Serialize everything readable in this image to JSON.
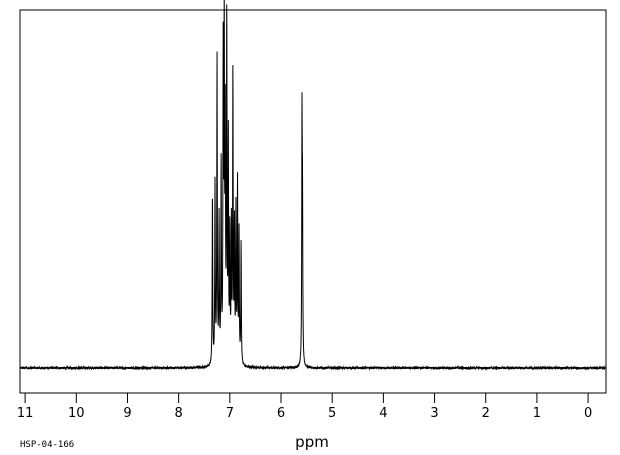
{
  "chart_data": {
    "type": "line",
    "xlabel": "ppm",
    "xlim": [
      11.1,
      -0.35
    ],
    "x_reversed": true,
    "ylim": [
      -0.07,
      1.0
    ],
    "x_ticks": [
      11,
      10,
      9,
      8,
      7,
      6,
      5,
      4,
      3,
      2,
      1,
      0
    ],
    "x_tick_labels": [
      "11",
      "10",
      "9",
      "8",
      "7",
      "6",
      "5",
      "4",
      "3",
      "2",
      "1",
      "0"
    ],
    "grid": false,
    "legend": "none",
    "line_color": "#000000",
    "peaks": [
      {
        "x": 7.34,
        "y": 0.48
      },
      {
        "x": 7.29,
        "y": 0.5
      },
      {
        "x": 7.25,
        "y": 0.85
      },
      {
        "x": 7.21,
        "y": 0.4
      },
      {
        "x": 7.17,
        "y": 0.55
      },
      {
        "x": 7.13,
        "y": 0.85
      },
      {
        "x": 7.11,
        "y": 0.92
      },
      {
        "x": 7.09,
        "y": 0.65
      },
      {
        "x": 7.06,
        "y": 0.96
      },
      {
        "x": 7.03,
        "y": 0.62
      },
      {
        "x": 7.0,
        "y": 0.36
      },
      {
        "x": 6.97,
        "y": 0.38
      },
      {
        "x": 6.94,
        "y": 0.81
      },
      {
        "x": 6.91,
        "y": 0.38
      },
      {
        "x": 6.88,
        "y": 0.43
      },
      {
        "x": 6.85,
        "y": 0.51
      },
      {
        "x": 6.82,
        "y": 0.37
      },
      {
        "x": 6.78,
        "y": 0.34
      },
      {
        "x": 5.59,
        "y": 0.66
      },
      {
        "x": 5.58,
        "y": 0.4
      }
    ]
  },
  "footer": {
    "code": "HSP-04-166"
  }
}
